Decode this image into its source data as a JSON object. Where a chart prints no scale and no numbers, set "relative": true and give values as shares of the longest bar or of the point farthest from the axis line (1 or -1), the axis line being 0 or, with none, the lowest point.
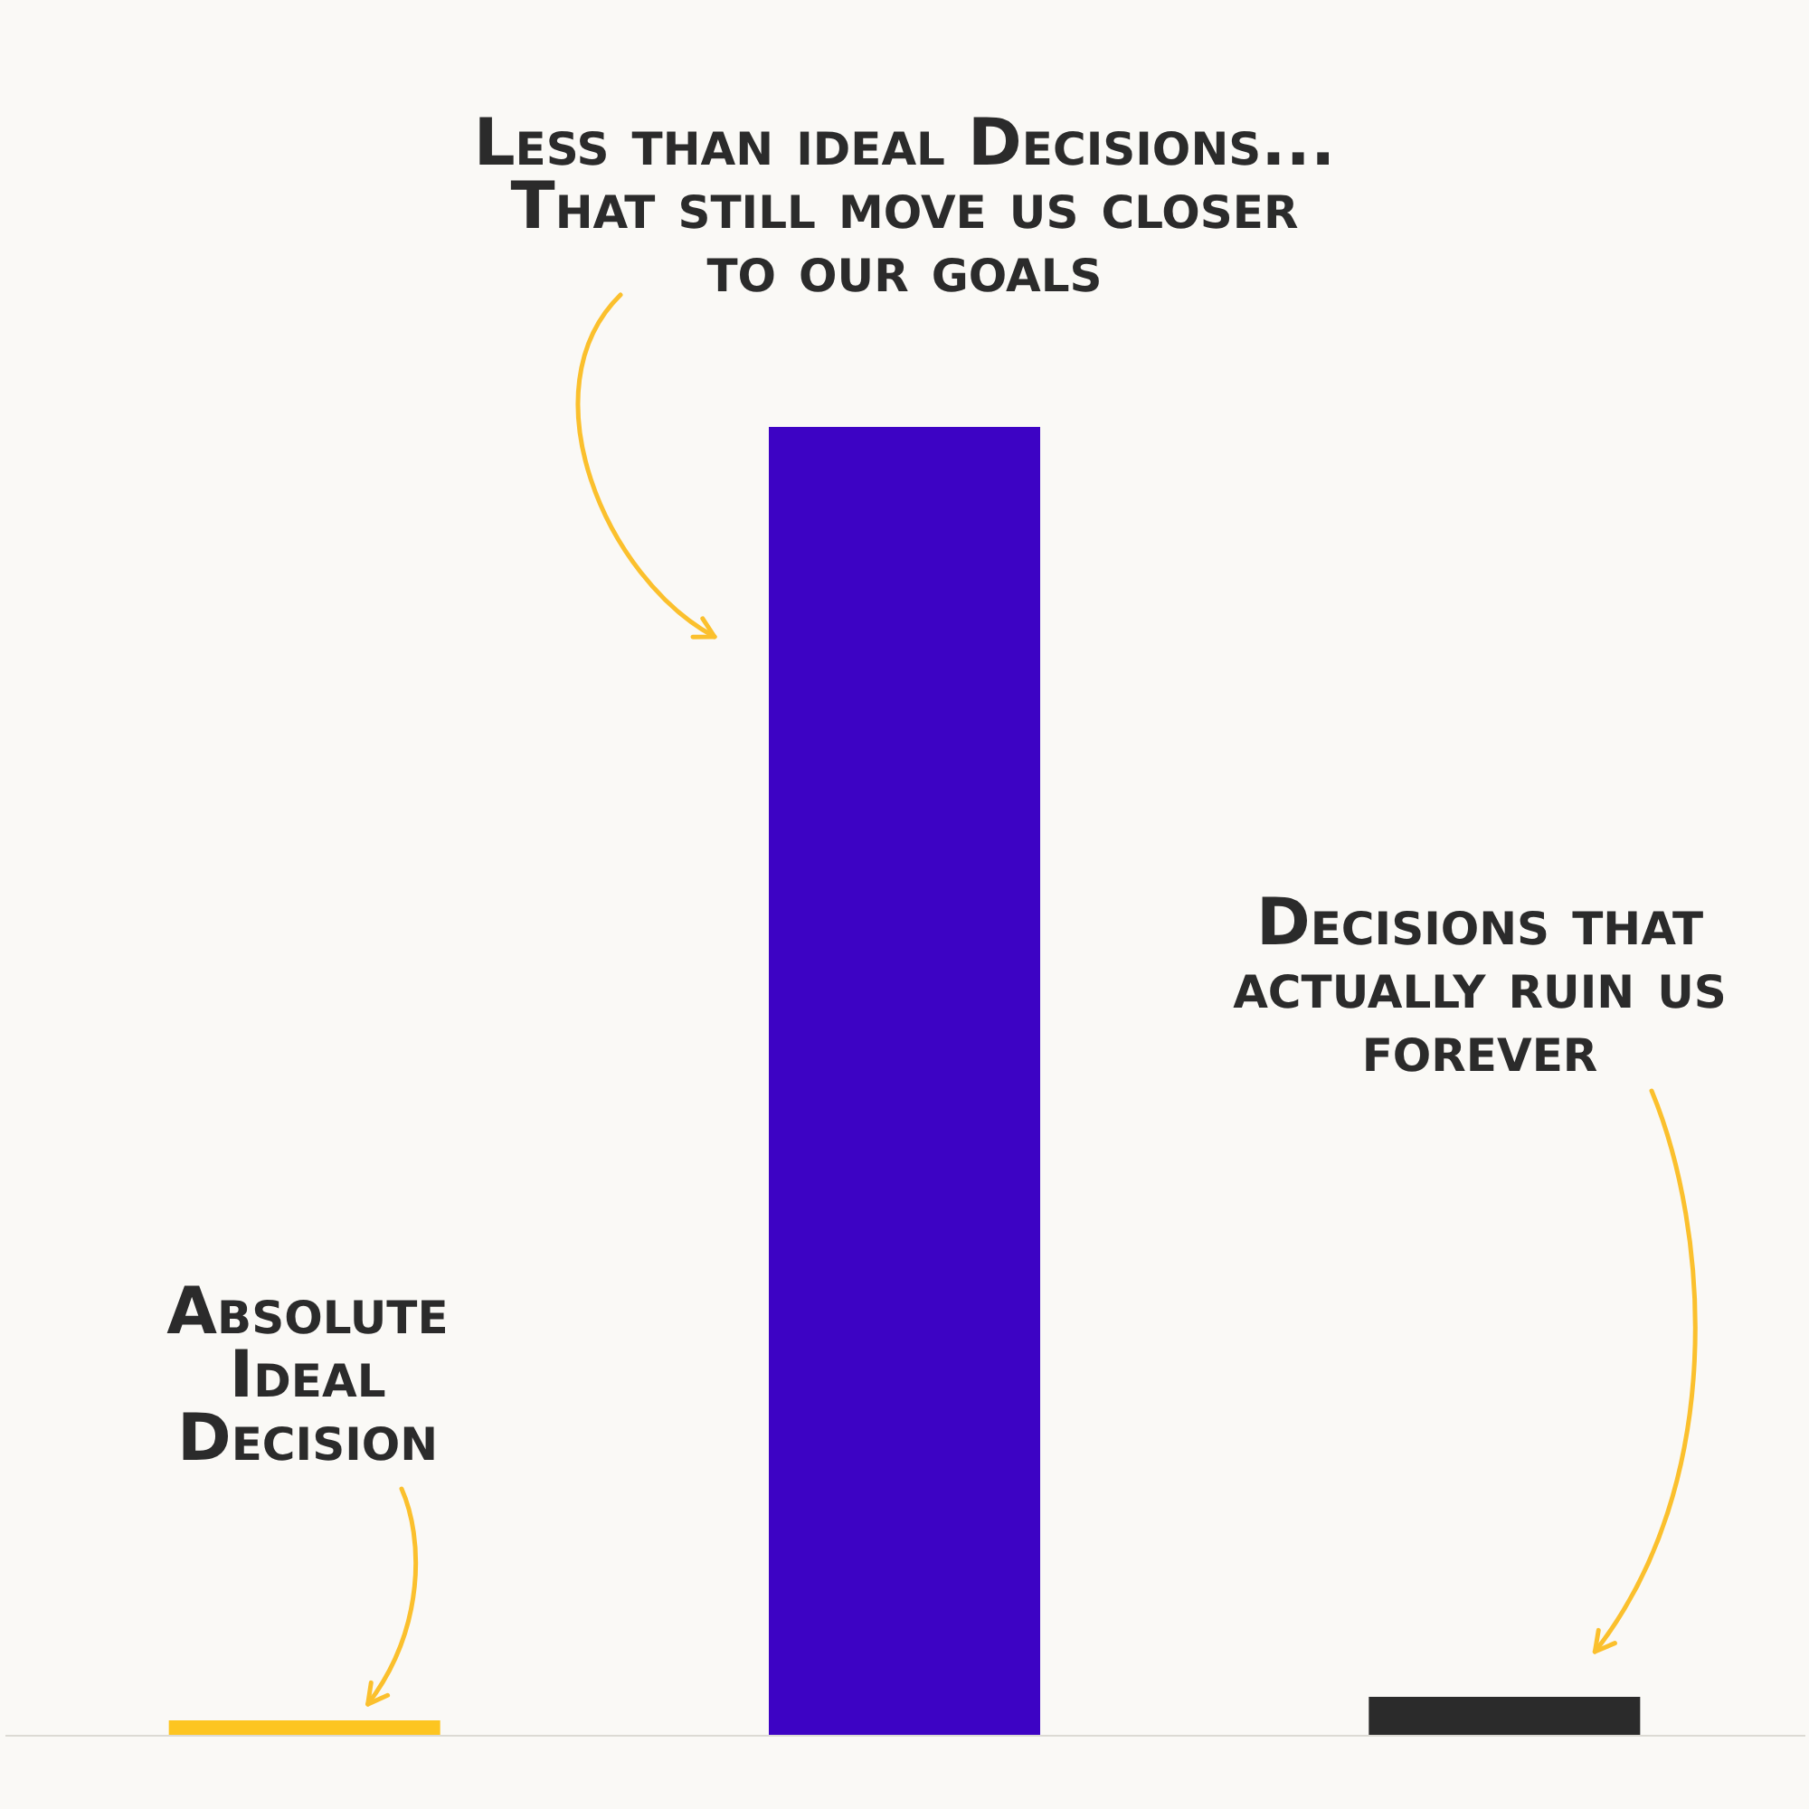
{
  "chart_data": {
    "type": "bar",
    "relative": true,
    "categories": [
      null,
      null,
      null
    ],
    "values": [
      0.011,
      1,
      0.029
    ],
    "colors": [
      "#fdc521",
      "#3d03c4",
      "#2b2b2b"
    ],
    "annotations": [
      "Absolute Ideal Decision",
      "Less than ideal Decisions... That still move us closer to our goals",
      "Decisions that actually ruin us forever"
    ]
  }
}
